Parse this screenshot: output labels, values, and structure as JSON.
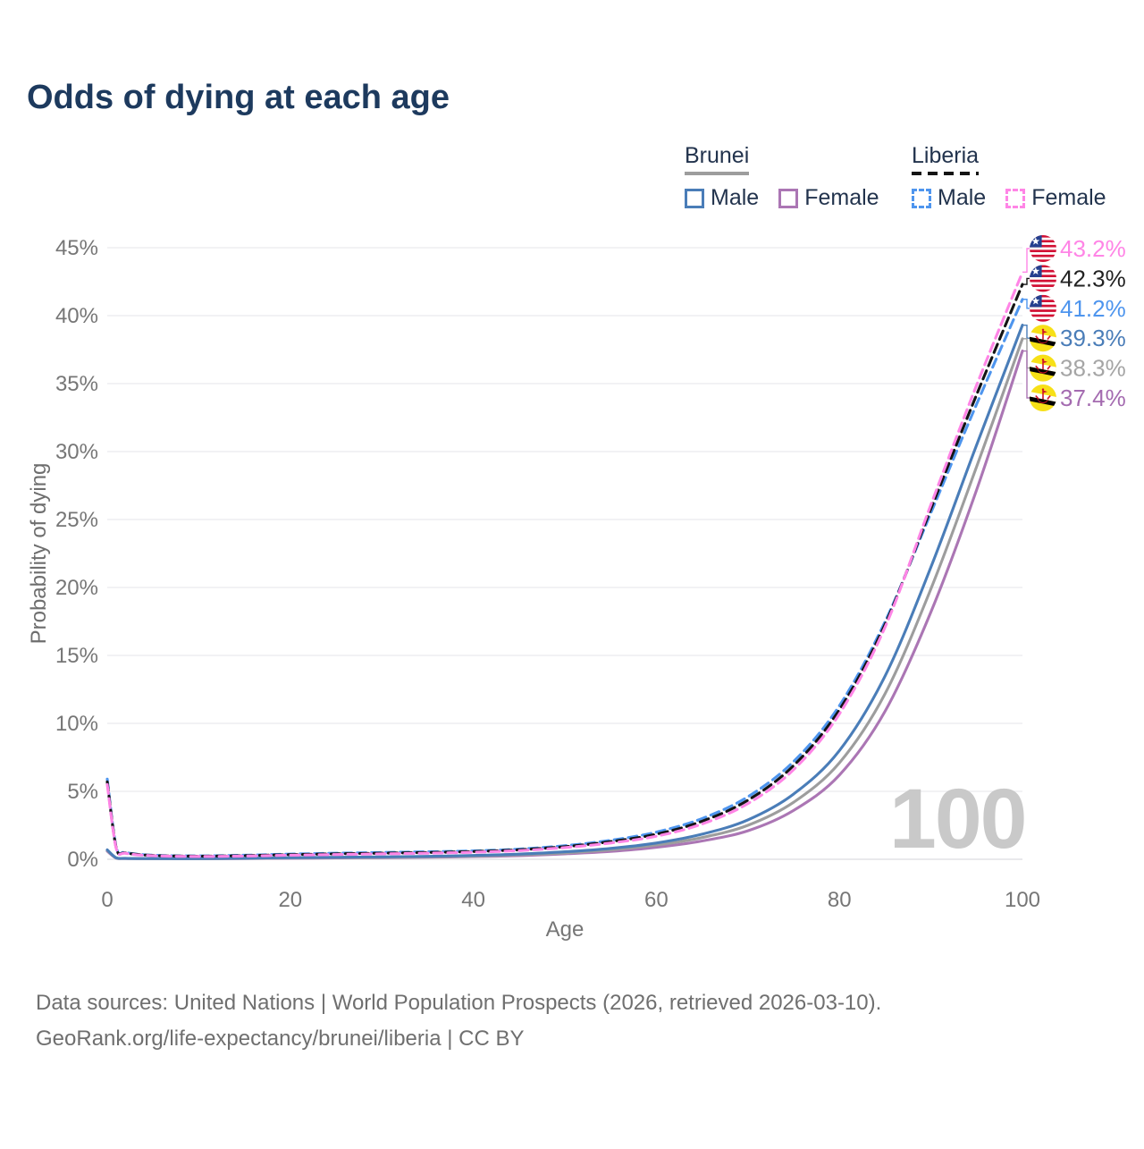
{
  "title": "Odds of dying at each age",
  "watermark": "100",
  "legend": {
    "groups": [
      {
        "country": "Brunei",
        "line_style": "solid",
        "underline_css": "background:#9d9d9d",
        "items": [
          {
            "label": "Male",
            "color": "#4a7db8",
            "box_css": "border:3px solid #4a7db8"
          },
          {
            "label": "Female",
            "color": "#ab76b4",
            "box_css": "border:3px solid #ab76b4"
          }
        ]
      },
      {
        "country": "Liberia",
        "line_style": "dashed",
        "underline_css": "background:repeating-linear-gradient(90deg,#141414 0 11px,transparent 11px 18px)",
        "items": [
          {
            "label": "Male",
            "color": "#4e95ee",
            "box_css": "border:3px dashed #4e95ee"
          },
          {
            "label": "Female",
            "color": "#ff85e6",
            "box_css": "border:3px dashed #ff85e6"
          }
        ]
      }
    ]
  },
  "footer": {
    "line1": "Data sources: United Nations | World Population Prospects (2026, retrieved 2026-03-10).",
    "line2": "GeoRank.org/life-expectancy/brunei/liberia | CC BY"
  },
  "chart_data": {
    "type": "line",
    "title": "Odds of dying at each age",
    "xlabel": "Age",
    "ylabel": "Probability of dying",
    "xlim": [
      0,
      100
    ],
    "ylim": [
      0,
      45
    ],
    "x_ticks": [
      0,
      20,
      40,
      60,
      80,
      100
    ],
    "y_ticks": [
      0,
      5,
      10,
      15,
      20,
      25,
      30,
      35,
      40,
      45
    ],
    "y_tick_suffix": "%",
    "grid": "horizontal",
    "legend_position": "top-right",
    "series": [
      {
        "name": "Liberia Female",
        "country": "Liberia",
        "sex": "Female",
        "color": "#ff85e6",
        "label_color": "#ff85e6",
        "dashed": true,
        "flag": "liberia",
        "end_label": "43.2%",
        "points": [
          [
            0,
            5.5
          ],
          [
            1,
            0.75
          ],
          [
            2,
            0.44
          ],
          [
            5,
            0.26
          ],
          [
            10,
            0.21
          ],
          [
            15,
            0.24
          ],
          [
            20,
            0.3
          ],
          [
            25,
            0.35
          ],
          [
            30,
            0.4
          ],
          [
            35,
            0.45
          ],
          [
            40,
            0.52
          ],
          [
            45,
            0.64
          ],
          [
            50,
            0.86
          ],
          [
            55,
            1.2
          ],
          [
            60,
            1.7
          ],
          [
            65,
            2.6
          ],
          [
            70,
            4.1
          ],
          [
            75,
            6.6
          ],
          [
            80,
            10.7
          ],
          [
            85,
            17.1
          ],
          [
            90,
            26.1
          ],
          [
            95,
            34.9
          ],
          [
            100,
            43.2
          ]
        ]
      },
      {
        "name": "Liberia Both sexes",
        "country": "Liberia",
        "sex": "Both",
        "color": "#141414",
        "label_color": "#222222",
        "dashed": true,
        "flag": "liberia",
        "end_label": "42.3%",
        "points": [
          [
            0,
            5.7
          ],
          [
            1,
            0.8
          ],
          [
            2,
            0.47
          ],
          [
            5,
            0.28
          ],
          [
            10,
            0.23
          ],
          [
            15,
            0.27
          ],
          [
            20,
            0.34
          ],
          [
            25,
            0.4
          ],
          [
            30,
            0.45
          ],
          [
            35,
            0.5
          ],
          [
            40,
            0.57
          ],
          [
            45,
            0.7
          ],
          [
            50,
            0.93
          ],
          [
            55,
            1.3
          ],
          [
            60,
            1.85
          ],
          [
            65,
            2.8
          ],
          [
            70,
            4.35
          ],
          [
            75,
            6.9
          ],
          [
            80,
            11.0
          ],
          [
            85,
            17.3
          ],
          [
            90,
            25.8
          ],
          [
            95,
            34.2
          ],
          [
            100,
            42.3
          ]
        ]
      },
      {
        "name": "Liberia Male",
        "country": "Liberia",
        "sex": "Male",
        "color": "#4e95ee",
        "label_color": "#4e95ee",
        "dashed": true,
        "flag": "liberia",
        "end_label": "41.2%",
        "points": [
          [
            0,
            5.9
          ],
          [
            1,
            0.85
          ],
          [
            2,
            0.5
          ],
          [
            5,
            0.3
          ],
          [
            10,
            0.25
          ],
          [
            15,
            0.3
          ],
          [
            20,
            0.38
          ],
          [
            25,
            0.45
          ],
          [
            30,
            0.5
          ],
          [
            35,
            0.55
          ],
          [
            40,
            0.62
          ],
          [
            45,
            0.75
          ],
          [
            50,
            1.0
          ],
          [
            55,
            1.4
          ],
          [
            60,
            2.0
          ],
          [
            65,
            3.0
          ],
          [
            70,
            4.6
          ],
          [
            75,
            7.2
          ],
          [
            80,
            11.3
          ],
          [
            85,
            17.5
          ],
          [
            90,
            25.5
          ],
          [
            95,
            33.5
          ],
          [
            100,
            41.2
          ]
        ]
      },
      {
        "name": "Brunei Male",
        "country": "Brunei",
        "sex": "Male",
        "color": "#4a7db8",
        "label_color": "#4a7db8",
        "dashed": false,
        "flag": "brunei",
        "end_label": "39.3%",
        "points": [
          [
            0,
            0.7
          ],
          [
            1,
            0.1
          ],
          [
            2,
            0.07
          ],
          [
            5,
            0.05
          ],
          [
            10,
            0.05
          ],
          [
            15,
            0.08
          ],
          [
            20,
            0.12
          ],
          [
            25,
            0.15
          ],
          [
            30,
            0.18
          ],
          [
            35,
            0.22
          ],
          [
            40,
            0.28
          ],
          [
            45,
            0.38
          ],
          [
            50,
            0.55
          ],
          [
            55,
            0.8
          ],
          [
            60,
            1.2
          ],
          [
            65,
            1.85
          ],
          [
            70,
            2.9
          ],
          [
            75,
            4.8
          ],
          [
            80,
            8.0
          ],
          [
            85,
            13.5
          ],
          [
            90,
            21.5
          ],
          [
            95,
            30.5
          ],
          [
            100,
            39.3
          ]
        ]
      },
      {
        "name": "Brunei Both sexes",
        "country": "Brunei",
        "sex": "Both",
        "color": "#9d9d9d",
        "label_color": "#a5a5a5",
        "dashed": false,
        "flag": "brunei",
        "end_label": "38.3%",
        "points": [
          [
            0,
            0.65
          ],
          [
            1,
            0.09
          ],
          [
            2,
            0.06
          ],
          [
            5,
            0.045
          ],
          [
            10,
            0.045
          ],
          [
            15,
            0.07
          ],
          [
            20,
            0.1
          ],
          [
            25,
            0.13
          ],
          [
            30,
            0.15
          ],
          [
            35,
            0.19
          ],
          [
            40,
            0.24
          ],
          [
            45,
            0.33
          ],
          [
            50,
            0.47
          ],
          [
            55,
            0.7
          ],
          [
            60,
            1.05
          ],
          [
            65,
            1.6
          ],
          [
            70,
            2.5
          ],
          [
            75,
            4.2
          ],
          [
            80,
            7.1
          ],
          [
            85,
            12.2
          ],
          [
            90,
            19.9
          ],
          [
            95,
            28.9
          ],
          [
            100,
            38.3
          ]
        ]
      },
      {
        "name": "Brunei Female",
        "country": "Brunei",
        "sex": "Female",
        "color": "#ab76b4",
        "label_color": "#a46bb0",
        "dashed": false,
        "flag": "brunei",
        "end_label": "37.4%",
        "points": [
          [
            0,
            0.6
          ],
          [
            1,
            0.08
          ],
          [
            2,
            0.05
          ],
          [
            5,
            0.04
          ],
          [
            10,
            0.04
          ],
          [
            15,
            0.05
          ],
          [
            20,
            0.08
          ],
          [
            25,
            0.1
          ],
          [
            30,
            0.12
          ],
          [
            35,
            0.15
          ],
          [
            40,
            0.2
          ],
          [
            45,
            0.27
          ],
          [
            50,
            0.4
          ],
          [
            55,
            0.58
          ],
          [
            60,
            0.88
          ],
          [
            65,
            1.35
          ],
          [
            70,
            2.1
          ],
          [
            75,
            3.6
          ],
          [
            80,
            6.2
          ],
          [
            85,
            10.9
          ],
          [
            90,
            18.2
          ],
          [
            95,
            27.2
          ],
          [
            100,
            37.4
          ]
        ]
      }
    ]
  }
}
